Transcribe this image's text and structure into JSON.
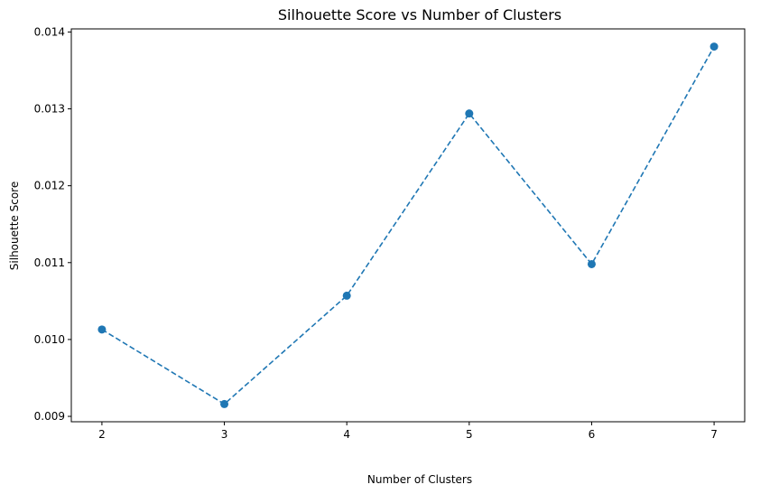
{
  "chart_data": {
    "type": "line",
    "title": "Silhouette Score vs Number of Clusters",
    "xlabel": "Number of Clusters",
    "ylabel": "Silhouette Score",
    "x": [
      2,
      3,
      4,
      5,
      6,
      7
    ],
    "series": [
      {
        "values": [
          0.01013,
          0.00916,
          0.01057,
          0.01294,
          0.01098,
          0.01381
        ]
      }
    ],
    "xlim": [
      1.75,
      7.25
    ],
    "ylim": [
      0.00893,
      0.01404
    ],
    "xticks": [
      "2",
      "3",
      "4",
      "5",
      "6",
      "7"
    ],
    "yticks": [
      {
        "value": 0.009,
        "label": "0.009"
      },
      {
        "value": 0.01,
        "label": "0.010"
      },
      {
        "value": 0.011,
        "label": "0.011"
      },
      {
        "value": 0.012,
        "label": "0.012"
      },
      {
        "value": 0.013,
        "label": "0.013"
      },
      {
        "value": 0.014,
        "label": "0.014"
      }
    ],
    "grid": false,
    "line_style": "dashed",
    "marker": "circle",
    "color": "#1f77b4"
  }
}
